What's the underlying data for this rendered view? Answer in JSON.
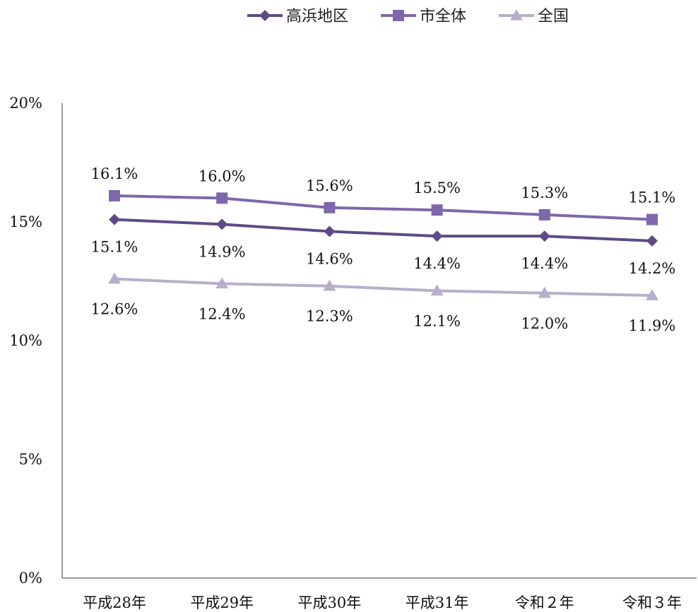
{
  "chart_data": {
    "type": "line",
    "categories": [
      "平成28年",
      "平成29年",
      "平成30年",
      "平成31年",
      "令和２年",
      "令和３年"
    ],
    "series": [
      {
        "name": "高浜地区",
        "values": [
          15.1,
          14.9,
          14.6,
          14.4,
          14.4,
          14.2
        ],
        "labels": [
          "15.1%",
          "14.9%",
          "14.6%",
          "14.4%",
          "14.4%",
          "14.2%"
        ],
        "color": "#5f4a87",
        "marker": "diamond"
      },
      {
        "name": "市全体",
        "values": [
          16.1,
          16.0,
          15.6,
          15.5,
          15.3,
          15.1
        ],
        "labels": [
          "16.1%",
          "16.0%",
          "15.6%",
          "15.5%",
          "15.3%",
          "15.1%"
        ],
        "color": "#7f67ab",
        "marker": "square"
      },
      {
        "name": "全国",
        "values": [
          12.6,
          12.4,
          12.3,
          12.1,
          12.0,
          11.9
        ],
        "labels": [
          "12.6%",
          "12.4%",
          "12.3%",
          "12.1%",
          "12.0%",
          "11.9%"
        ],
        "color": "#b6aecb",
        "marker": "triangle"
      }
    ],
    "ylim": [
      0,
      20
    ],
    "yticks": [
      0,
      5,
      10,
      15,
      20
    ],
    "ytick_labels": [
      "0%",
      "5%",
      "10%",
      "15%",
      "20%"
    ],
    "legend_position": "top",
    "grid": false
  }
}
